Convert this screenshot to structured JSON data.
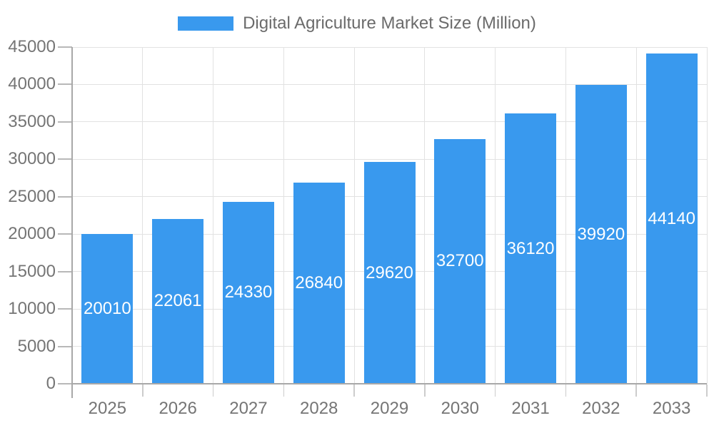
{
  "chart_data": {
    "type": "bar",
    "title": "Digital Agriculture Market Size (Million)",
    "legend_position": "top",
    "categories": [
      "2025",
      "2026",
      "2027",
      "2028",
      "2029",
      "2030",
      "2031",
      "2032",
      "2033"
    ],
    "series": [
      {
        "name": "Digital Agriculture Market Size (Million)",
        "values": [
          20010,
          22061,
          24330,
          26840,
          29620,
          32700,
          36120,
          39920,
          44140
        ]
      }
    ],
    "value_labels": [
      "20010",
      "22061",
      "24330",
      "26840",
      "29620",
      "32700",
      "36120",
      "39920",
      "44140"
    ],
    "xlabel": "",
    "ylabel": "",
    "ylim": [
      0,
      45000
    ],
    "ytick_step": 5000,
    "ytick_labels": [
      "0",
      "5000",
      "10000",
      "15000",
      "20000",
      "25000",
      "30000",
      "35000",
      "40000",
      "45000"
    ],
    "grid": {
      "horizontal": true,
      "vertical": true
    },
    "colors": {
      "bar": "#3999EE",
      "bar_label_text": "#ffffff",
      "axis_text": "#757575",
      "legend_text": "#6b6b6b",
      "gridline": "#e2e2e2",
      "axis_line": "#a8a8a8",
      "baseline": "#a8a8a8",
      "tick": "#b8b8b8",
      "boundary_tick": "#cccccc",
      "background": "#ffffff"
    }
  }
}
